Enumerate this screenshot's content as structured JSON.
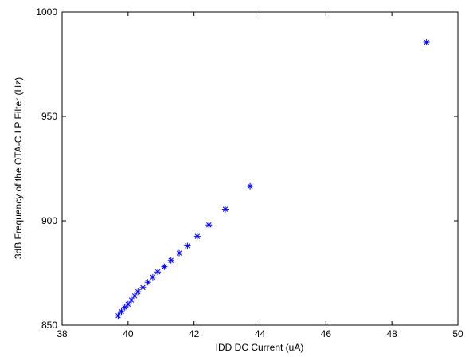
{
  "chart_data": {
    "type": "scatter",
    "title": "",
    "xlabel": "IDD DC Current (uA)",
    "ylabel": "3dB Frequency of the OTA-C LP Filter (Hz)",
    "xlim": [
      38,
      50
    ],
    "ylim": [
      850,
      1000
    ],
    "xticks": [
      38,
      40,
      42,
      44,
      46,
      48,
      50
    ],
    "yticks": [
      850,
      900,
      950,
      1000
    ],
    "marker": "asterisk",
    "color": "#0000ff",
    "grid": false,
    "legend": "none",
    "series": [
      {
        "x": [
          39.7,
          39.8,
          39.9,
          40.0,
          40.1,
          40.2,
          40.3,
          40.45,
          40.6,
          40.75,
          40.9,
          41.1,
          41.3,
          41.55,
          41.8,
          42.1,
          42.45,
          42.95,
          43.7,
          49.05
        ],
        "y": [
          854.5,
          856.5,
          858.5,
          860.0,
          862.0,
          864.0,
          866.0,
          868.0,
          870.5,
          873.0,
          875.5,
          878.0,
          881.0,
          884.5,
          888.0,
          892.5,
          898.0,
          905.5,
          916.5,
          985.5
        ]
      }
    ]
  }
}
